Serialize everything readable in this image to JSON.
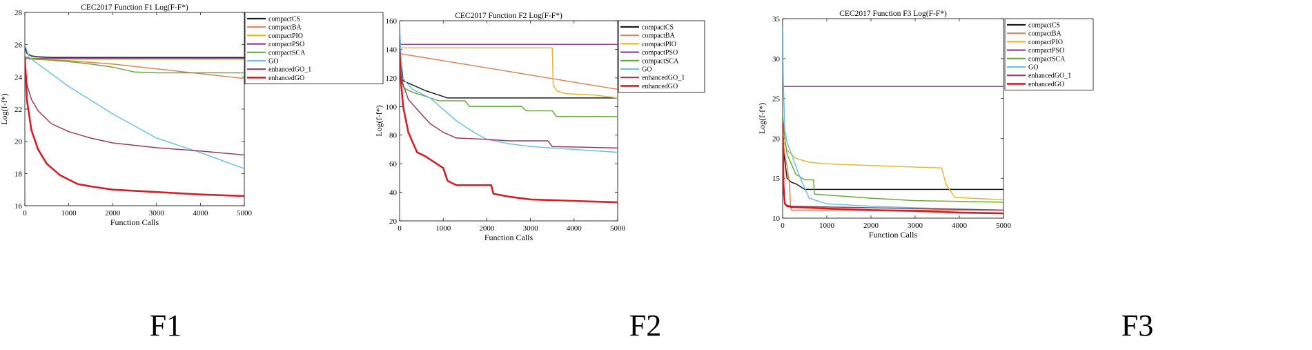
{
  "captions": [
    "F1",
    "F2",
    "F3"
  ],
  "colors": {
    "compactCS": "#1a1a1a",
    "compactBA": "#d9855a",
    "compactPIO": "#e6b830",
    "compactPSO": "#8b4a92",
    "compactSCA": "#6aa83a",
    "GO": "#6cc0e6",
    "enhancedGO_1": "#9b3a5a",
    "enhancedGO": "#d41e26"
  },
  "chart_data": [
    {
      "type": "line",
      "title": "CEC2017 Function F1 Log(F-F*)",
      "xlabel": "Function Calls",
      "ylabel": "Log(f-f*)",
      "xlim": [
        0,
        5000
      ],
      "ylim": [
        16,
        28
      ],
      "xticks": [
        0,
        1000,
        2000,
        3000,
        4000,
        5000
      ],
      "yticks": [
        16,
        18,
        20,
        22,
        24,
        26,
        28
      ],
      "legend": [
        "compactCS",
        "compactBA",
        "compactPIO",
        "compactPSO",
        "compactSCA",
        "GO",
        "enhancedGO_1",
        "enhancedGO"
      ],
      "series": [
        {
          "name": "compactCS",
          "x": [
            0,
            50,
            150,
            300,
            600,
            5000
          ],
          "y": [
            25.8,
            25.45,
            25.3,
            25.25,
            25.2,
            25.2
          ]
        },
        {
          "name": "compactBA",
          "x": [
            0,
            100,
            1000,
            2000,
            3000,
            4000,
            5000
          ],
          "y": [
            25.3,
            25.1,
            25.0,
            24.8,
            24.5,
            24.2,
            23.9
          ]
        },
        {
          "name": "compactPIO",
          "x": [
            0,
            100,
            500,
            5000
          ],
          "y": [
            25.3,
            25.15,
            25.1,
            25.1
          ]
        },
        {
          "name": "compactPSO",
          "x": [
            0,
            30,
            5000
          ],
          "y": [
            25.2,
            25.15,
            25.15
          ]
        },
        {
          "name": "compactSCA",
          "x": [
            0,
            500,
            1000,
            1500,
            2000,
            2500,
            3000,
            5000
          ],
          "y": [
            25.2,
            25.05,
            24.95,
            24.8,
            24.6,
            24.3,
            24.25,
            24.25
          ]
        },
        {
          "name": "GO",
          "x": [
            0,
            100,
            500,
            1000,
            2000,
            3000,
            4000,
            5000
          ],
          "y": [
            26.0,
            25.2,
            24.4,
            23.4,
            21.7,
            20.2,
            19.3,
            18.3
          ]
        },
        {
          "name": "enhancedGO_1",
          "x": [
            0,
            50,
            150,
            300,
            600,
            1000,
            1500,
            2000,
            2500,
            3000,
            4000,
            5000
          ],
          "y": [
            25.2,
            23.5,
            22.6,
            21.9,
            21.1,
            20.6,
            20.2,
            19.9,
            19.75,
            19.6,
            19.4,
            19.15
          ]
        },
        {
          "name": "enhancedGO",
          "x": [
            0,
            50,
            150,
            300,
            500,
            800,
            1200,
            1500,
            2000,
            3000,
            4000,
            5000
          ],
          "y": [
            25.2,
            22.5,
            20.7,
            19.5,
            18.6,
            17.9,
            17.35,
            17.2,
            17.0,
            16.85,
            16.7,
            16.6
          ]
        }
      ]
    },
    {
      "type": "line",
      "title": "CEC2017 Function F2 Log(F-F*)",
      "xlabel": "Function Calls",
      "ylabel": "Log(f-f*)",
      "xlim": [
        0,
        5000
      ],
      "ylim": [
        20,
        160
      ],
      "xticks": [
        0,
        1000,
        2000,
        3000,
        4000,
        5000
      ],
      "yticks": [
        20,
        40,
        60,
        80,
        100,
        120,
        140,
        160
      ],
      "legend": [
        "compactCS",
        "compactBA",
        "compactPIO",
        "compactPSO",
        "compactSCA",
        "GO",
        "enhancedGO_1",
        "enhancedGO"
      ],
      "series": [
        {
          "name": "compactCS",
          "x": [
            0,
            80,
            300,
            600,
            900,
            1100,
            1300,
            5000
          ],
          "y": [
            143,
            118,
            115,
            111,
            108,
            106,
            106,
            106
          ]
        },
        {
          "name": "compactBA",
          "x": [
            0,
            5000
          ],
          "y": [
            137,
            112
          ]
        },
        {
          "name": "compactPIO",
          "x": [
            0,
            3500,
            3520,
            3600,
            3800,
            4500,
            5000
          ],
          "y": [
            141,
            141,
            115,
            111,
            109,
            108,
            106
          ]
        },
        {
          "name": "compactPSO",
          "x": [
            0,
            5000
          ],
          "y": [
            143.5,
            143.5
          ]
        },
        {
          "name": "compactSCA",
          "x": [
            0,
            100,
            300,
            500,
            900,
            1500,
            1600,
            2800,
            2900,
            3500,
            3600,
            5000
          ],
          "y": [
            125,
            113,
            110,
            108,
            104,
            104,
            100,
            100,
            97,
            97,
            93,
            93
          ]
        },
        {
          "name": "GO",
          "x": [
            0,
            30,
            60,
            300,
            700,
            1000,
            1300,
            1700,
            2000,
            2500,
            3000,
            4000,
            5000
          ],
          "y": [
            160,
            135,
            120,
            112,
            106,
            98,
            90,
            82,
            77,
            74,
            72,
            70,
            68
          ]
        },
        {
          "name": "enhancedGO_1",
          "x": [
            0,
            50,
            200,
            400,
            700,
            1000,
            1300,
            2000,
            2500,
            3400,
            3500,
            5000
          ],
          "y": [
            138,
            118,
            105,
            98,
            88,
            82,
            78,
            77,
            76,
            76,
            72,
            71
          ]
        },
        {
          "name": "enhancedGO",
          "x": [
            0,
            30,
            80,
            200,
            400,
            600,
            1000,
            1100,
            1300,
            2100,
            2150,
            2500,
            3000,
            4000,
            5000
          ],
          "y": [
            140,
            118,
            100,
            82,
            68,
            65,
            57,
            48,
            45,
            45,
            39,
            37,
            35,
            34,
            33
          ]
        }
      ]
    },
    {
      "type": "line",
      "title": "CEC2017 Function F3 Log(F-F*)",
      "xlabel": "Function Calls",
      "ylabel": "Log(f-f*)",
      "xlim": [
        0,
        5000
      ],
      "ylim": [
        10,
        35
      ],
      "xticks": [
        0,
        1000,
        2000,
        3000,
        4000,
        5000
      ],
      "yticks": [
        10,
        15,
        20,
        25,
        30,
        35
      ],
      "legend": [
        "compactCS",
        "compactBA",
        "compactPIO",
        "compactPSO",
        "compactSCA",
        "GO",
        "enhancedGO_1",
        "enhancedGO"
      ],
      "series": [
        {
          "name": "compactCS",
          "x": [
            0,
            30,
            100,
            200,
            300,
            500,
            5000
          ],
          "y": [
            22,
            18,
            15,
            14.5,
            14.3,
            13.6,
            13.6
          ]
        },
        {
          "name": "compactBA",
          "x": [
            0,
            50,
            100,
            150,
            180,
            200,
            5000
          ],
          "y": [
            20,
            18,
            16.5,
            14.5,
            11.5,
            11.0,
            11.0
          ]
        },
        {
          "name": "compactPIO",
          "x": [
            0,
            100,
            300,
            600,
            1000,
            2000,
            3000,
            3600,
            3700,
            3900,
            5000
          ],
          "y": [
            20,
            18.5,
            17.5,
            17.0,
            16.8,
            16.6,
            16.4,
            16.3,
            14.2,
            12.6,
            12.3
          ]
        },
        {
          "name": "compactPSO",
          "x": [
            0,
            5000
          ],
          "y": [
            26.5,
            26.5
          ]
        },
        {
          "name": "compactSCA",
          "x": [
            0,
            50,
            100,
            300,
            500,
            700,
            720,
            1000,
            2000,
            3000,
            5000
          ],
          "y": [
            23,
            20,
            18,
            15.5,
            14.8,
            14.8,
            13,
            12.9,
            12.5,
            12.2,
            12.0
          ]
        },
        {
          "name": "GO",
          "x": [
            0,
            15,
            50,
            100,
            200,
            400,
            600,
            1000,
            2000,
            3000,
            5000
          ],
          "y": [
            34,
            27,
            21,
            19.5,
            18,
            15,
            12.5,
            11.8,
            11.5,
            11.3,
            11.0
          ]
        },
        {
          "name": "enhancedGO_1",
          "x": [
            0,
            20,
            60,
            100,
            200,
            1000,
            2000,
            3000,
            5000
          ],
          "y": [
            20,
            13,
            11.8,
            11.6,
            11.5,
            11.4,
            11.3,
            11.2,
            11.0
          ]
        },
        {
          "name": "enhancedGO",
          "x": [
            0,
            20,
            50,
            100,
            200,
            1000,
            2000,
            3000,
            4000,
            5000
          ],
          "y": [
            22,
            14,
            11.8,
            11.5,
            11.4,
            11.2,
            11.0,
            10.9,
            10.7,
            10.6
          ]
        }
      ]
    }
  ]
}
